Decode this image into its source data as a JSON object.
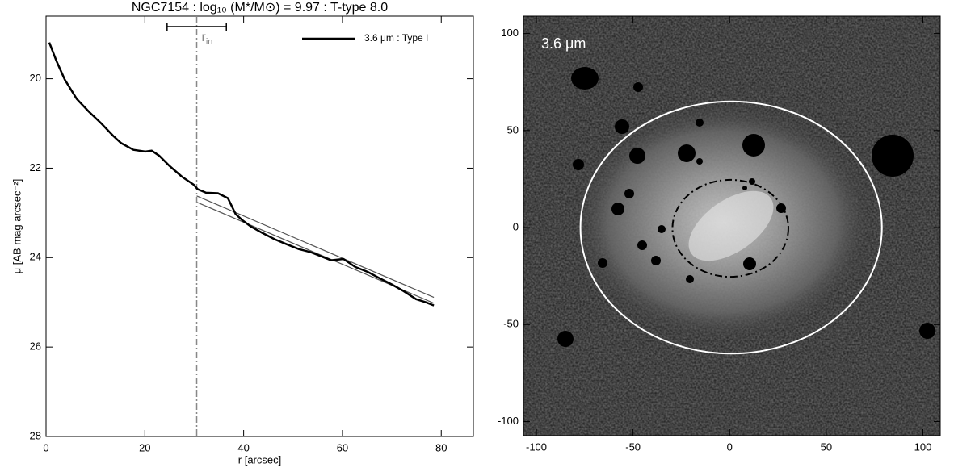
{
  "chart_data": [
    {
      "type": "line",
      "title": "NGC7154 : log₁₀ (M*/M⊙) = 9.97 : T-type 8.0",
      "xlabel": "r [arcsec]",
      "ylabel": "μ [AB mag arcsec⁻²]",
      "xlim": [
        0,
        86.5
      ],
      "ylim": [
        28,
        18.6
      ],
      "xticks": [
        0,
        20,
        40,
        60,
        80
      ],
      "yticks": [
        20,
        22,
        24,
        26,
        28
      ],
      "legend": "upper right",
      "series": [
        {
          "name": "3.6 μm : Type I",
          "color": "#000000",
          "x": [
            0.65,
            2.1,
            3.8,
            6.2,
            8.7,
            11.1,
            13.6,
            15.2,
            17.7,
            20.1,
            21.4,
            22.9,
            25.0,
            27.5,
            29.9,
            30.7,
            32.4,
            34.8,
            36.8,
            38.4,
            39.7,
            41.4,
            43.8,
            46.3,
            48.7,
            51.2,
            53.6,
            56.1,
            57.7,
            60.2,
            62.6,
            65.1,
            67.5,
            70.0,
            72.4,
            74.9,
            76.9,
            78.5
          ],
          "values": [
            19.19,
            19.6,
            20.02,
            20.45,
            20.74,
            20.99,
            21.28,
            21.44,
            21.59,
            21.63,
            21.61,
            21.72,
            21.95,
            22.19,
            22.37,
            22.47,
            22.55,
            22.56,
            22.67,
            23.03,
            23.16,
            23.3,
            23.45,
            23.59,
            23.7,
            23.81,
            23.88,
            23.99,
            24.06,
            24.03,
            24.21,
            24.32,
            24.46,
            24.6,
            24.75,
            24.93,
            25.0,
            25.07
          ]
        }
      ],
      "fit_lines": [
        {
          "x": [
            30.5,
            78.5
          ],
          "values": [
            22.62,
            24.89
          ],
          "color": "#555555"
        },
        {
          "x": [
            30.5,
            78.5
          ],
          "values": [
            22.76,
            25.02
          ],
          "color": "#555555"
        }
      ],
      "annotation": {
        "x": 30.5,
        "label": "r",
        "sub": "in",
        "range": [
          24.5,
          36.5
        ],
        "color": "#888888"
      }
    },
    {
      "type": "image",
      "label": "3.6 μm",
      "xlim": [
        -106.7,
        109
      ],
      "ylim": [
        -107.3,
        109
      ],
      "xticks": [
        -100,
        -50,
        0,
        50,
        100
      ],
      "yticks": [
        -100,
        -50,
        0,
        50,
        100
      ],
      "ellipses": [
        {
          "cx": 0.8,
          "cy": 0,
          "rx": 78,
          "ry": 65,
          "color": "#ffffff",
          "style": "solid"
        },
        {
          "cx": 0.4,
          "cy": -0.4,
          "rx": 30,
          "ry": 25,
          "color": "#000000",
          "style": "dashdot"
        }
      ]
    }
  ]
}
